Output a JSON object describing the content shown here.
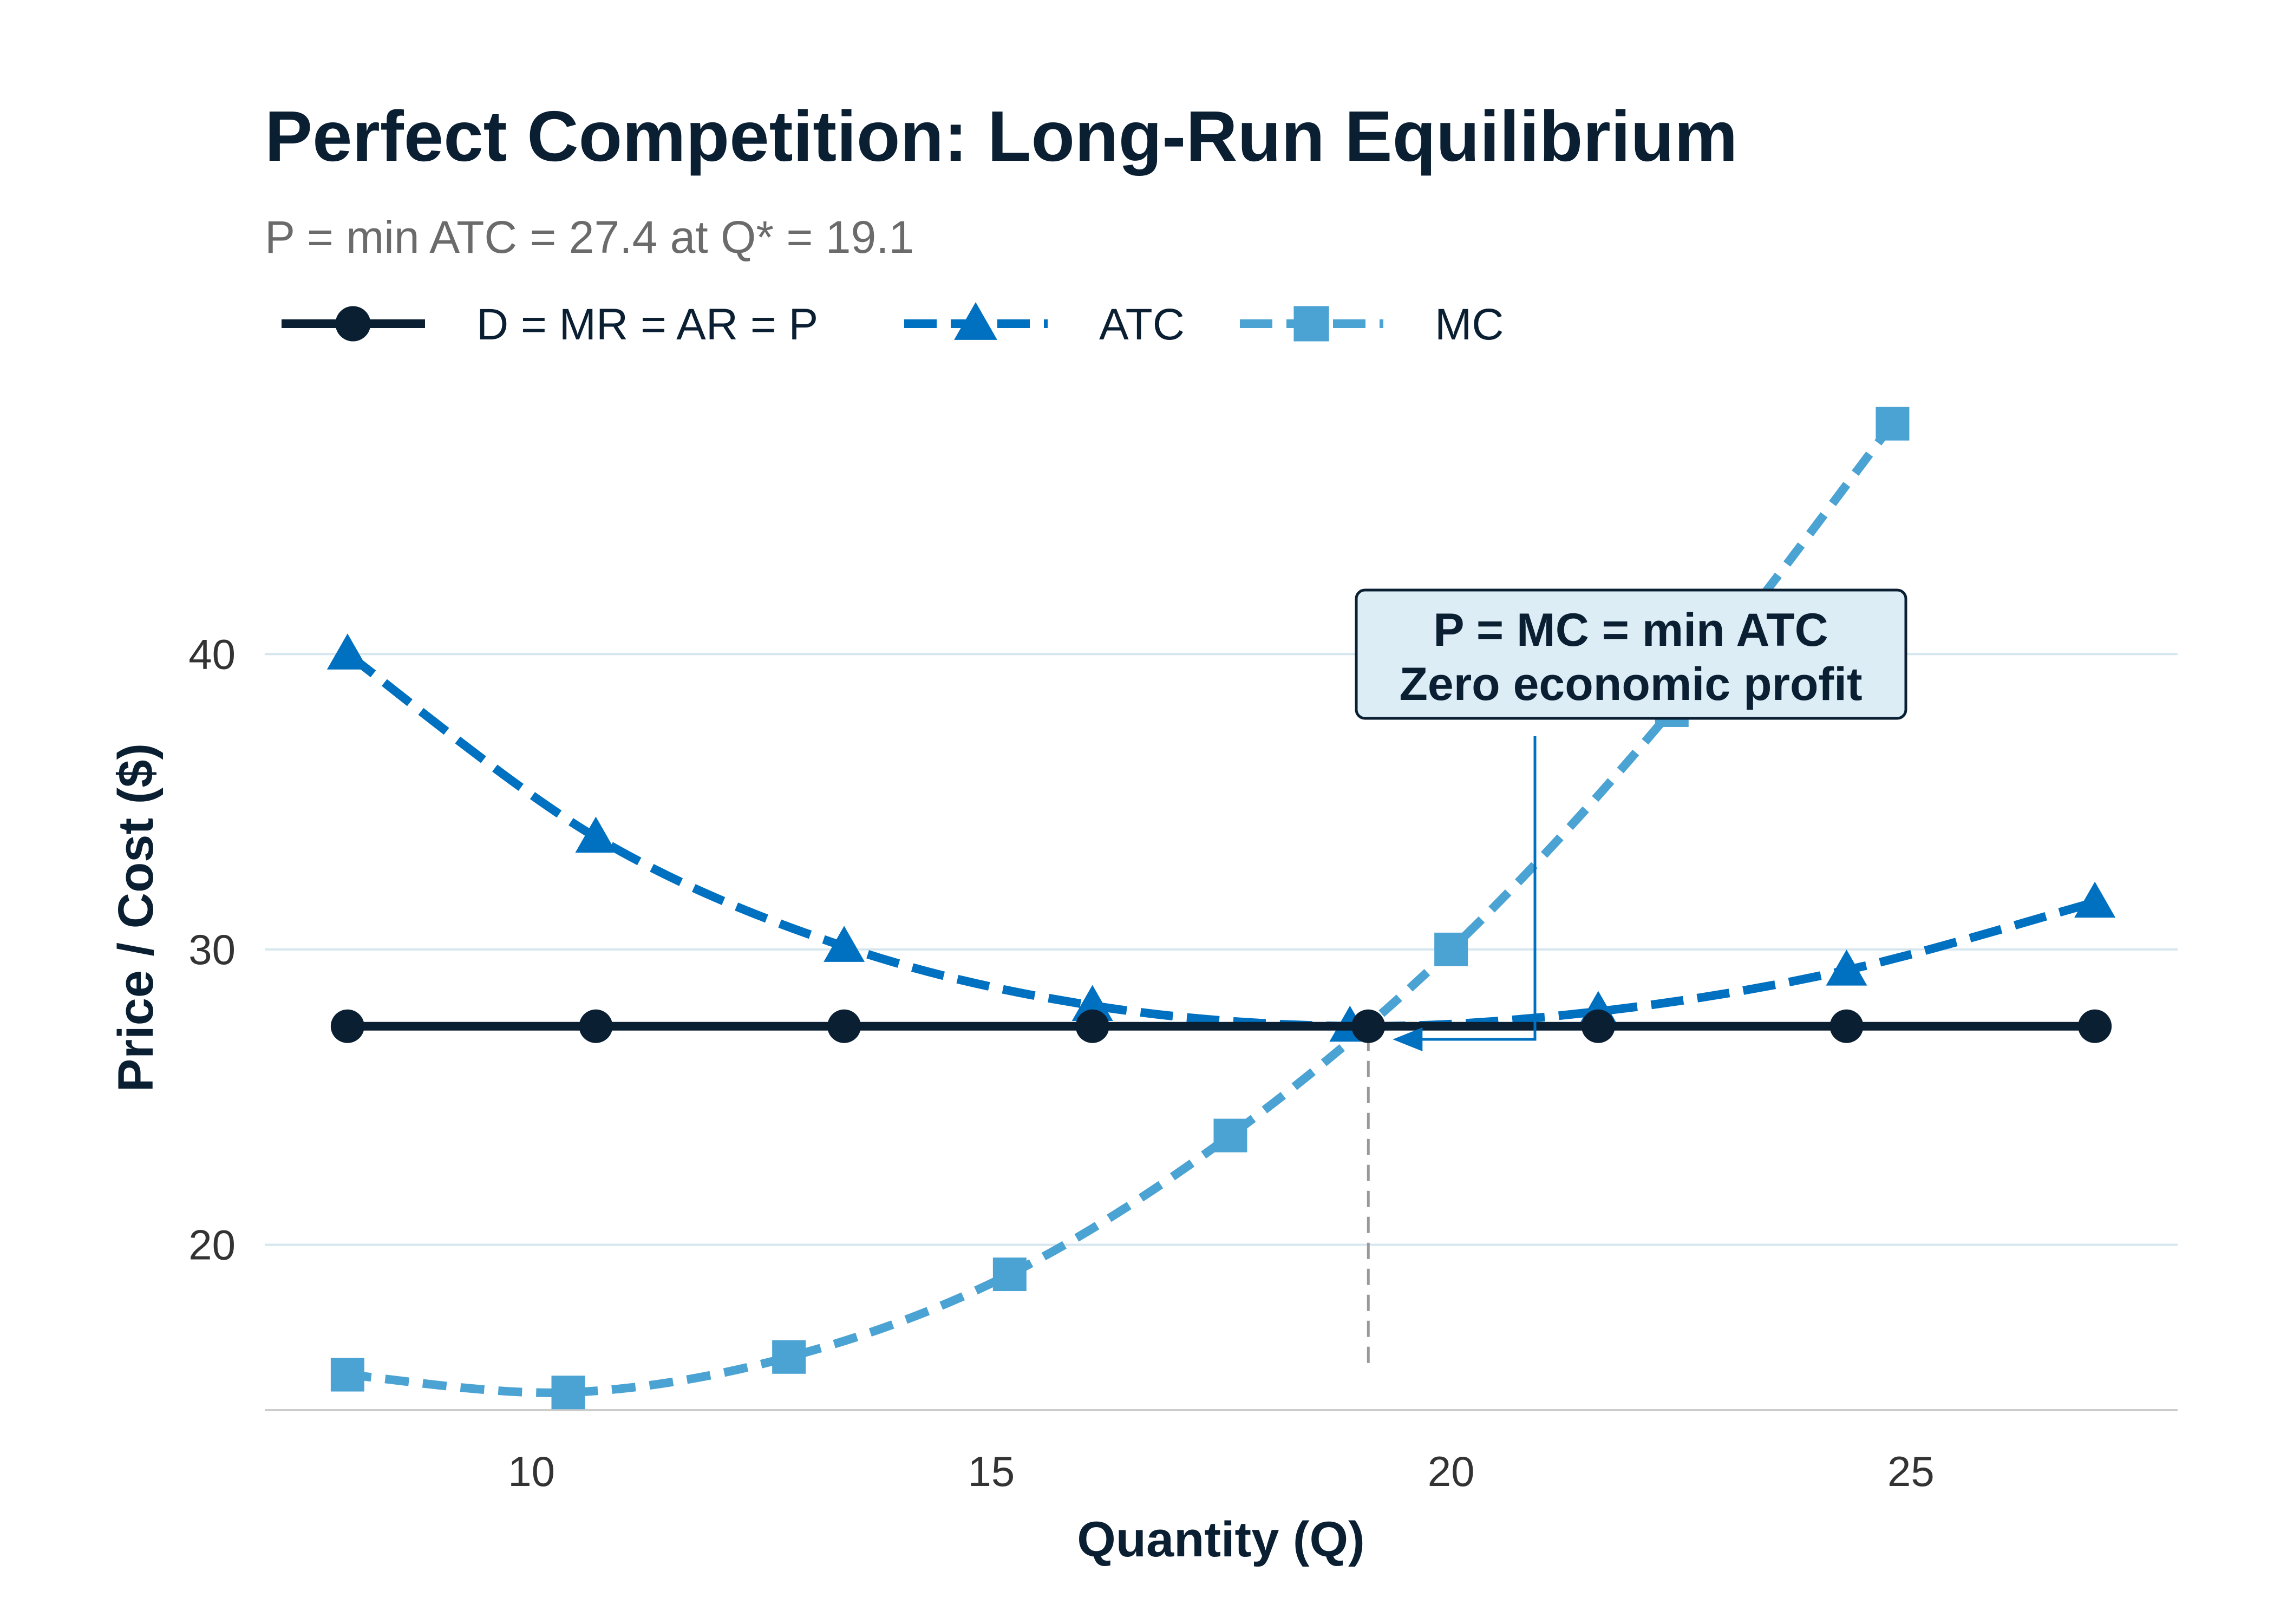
{
  "chart_data": {
    "type": "line",
    "title": "Perfect Competition: Long-Run Equilibrium",
    "subtitle": "P = min ATC = 27.4 at Q* = 19.1",
    "xlabel": "Quantity (Q)",
    "ylabel": "Price / Cost ($)",
    "xlim": [
      7.1,
      27.9
    ],
    "ylim": [
      14.4,
      49.5
    ],
    "xticks": [
      10,
      15,
      20,
      25
    ],
    "yticks": [
      20,
      30,
      40
    ],
    "grid": "horizontal",
    "legend_position": "top",
    "series": [
      {
        "name": "D = MR = AR = P",
        "color": "#0b1f33",
        "marker": "circle",
        "line_style": "solid",
        "x": [
          8,
          10.7,
          13.4,
          16.1,
          19.1,
          21.6,
          24.3,
          27
        ],
        "y": [
          27.4,
          27.4,
          27.4,
          27.4,
          27.4,
          27.4,
          27.4,
          27.4
        ]
      },
      {
        "name": "ATC",
        "color": "#0070c0",
        "marker": "triangle",
        "line_style": "dashed",
        "x": [
          8,
          10.7,
          13.4,
          16.1,
          18.9,
          21.6,
          24.3,
          27
        ],
        "y": [
          40,
          33.8,
          30.1,
          28.1,
          27.4,
          27.9,
          29.3,
          31.6
        ]
      },
      {
        "name": "MC",
        "color": "#4ba3d3",
        "marker": "square",
        "line_style": "dashed",
        "x": [
          8,
          10.4,
          12.8,
          15.2,
          17.6,
          20,
          22.4,
          24.8
        ],
        "y": [
          15.6,
          15,
          16.2,
          19,
          23.7,
          30,
          38.1,
          47.8
        ]
      }
    ],
    "reference_lines": [
      {
        "type": "vertical",
        "x": 19.1,
        "y_from": 16,
        "y_to": 27.4,
        "color": "#999999",
        "style": "dashed"
      }
    ],
    "annotation": {
      "lines": [
        "P = MC = min ATC",
        "Zero economic profit"
      ],
      "point": {
        "x": 19.1,
        "y": 27.4
      },
      "box_fill": "#dcedf6",
      "box_edge": "#0b1f33",
      "arrow_color": "#0070c0"
    }
  }
}
